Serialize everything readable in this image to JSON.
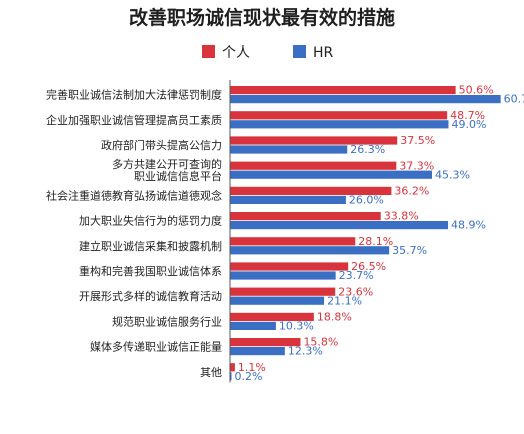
{
  "chart_data": {
    "type": "bar",
    "orientation": "horizontal",
    "title": "改善职场诚信现状最有效的措施",
    "legend_position": "top-center",
    "grid": false,
    "xlim": [
      0,
      61
    ],
    "value_suffix": "%",
    "categories": [
      "完善职业诚信法制加大法律惩罚制度",
      "企业加强职业诚信管理提高员工素质",
      "政府部门带头提高公信力",
      [
        "多方共建公开可查询的",
        "职业诚信信息平台"
      ],
      "社会注重道德教育弘扬诚信道德观念",
      "加大职业失信行为的惩罚力度",
      "建立职业诚信采集和披露机制",
      "重构和完善我国职业诚信体系",
      "开展形式多样的诚信教育活动",
      "规范职业诚信服务行业",
      "媒体多传递职业诚信正能量",
      "其他"
    ],
    "series": [
      {
        "name": "个人",
        "color": "#d9343c",
        "values": [
          50.6,
          48.7,
          37.5,
          37.3,
          36.2,
          33.8,
          28.1,
          26.5,
          23.6,
          18.8,
          15.8,
          1.1
        ]
      },
      {
        "name": "HR",
        "color": "#3a6fc4",
        "values": [
          60.7,
          49.0,
          26.3,
          45.3,
          26.0,
          48.9,
          35.7,
          23.7,
          21.1,
          10.3,
          12.3,
          0.2
        ]
      }
    ]
  }
}
